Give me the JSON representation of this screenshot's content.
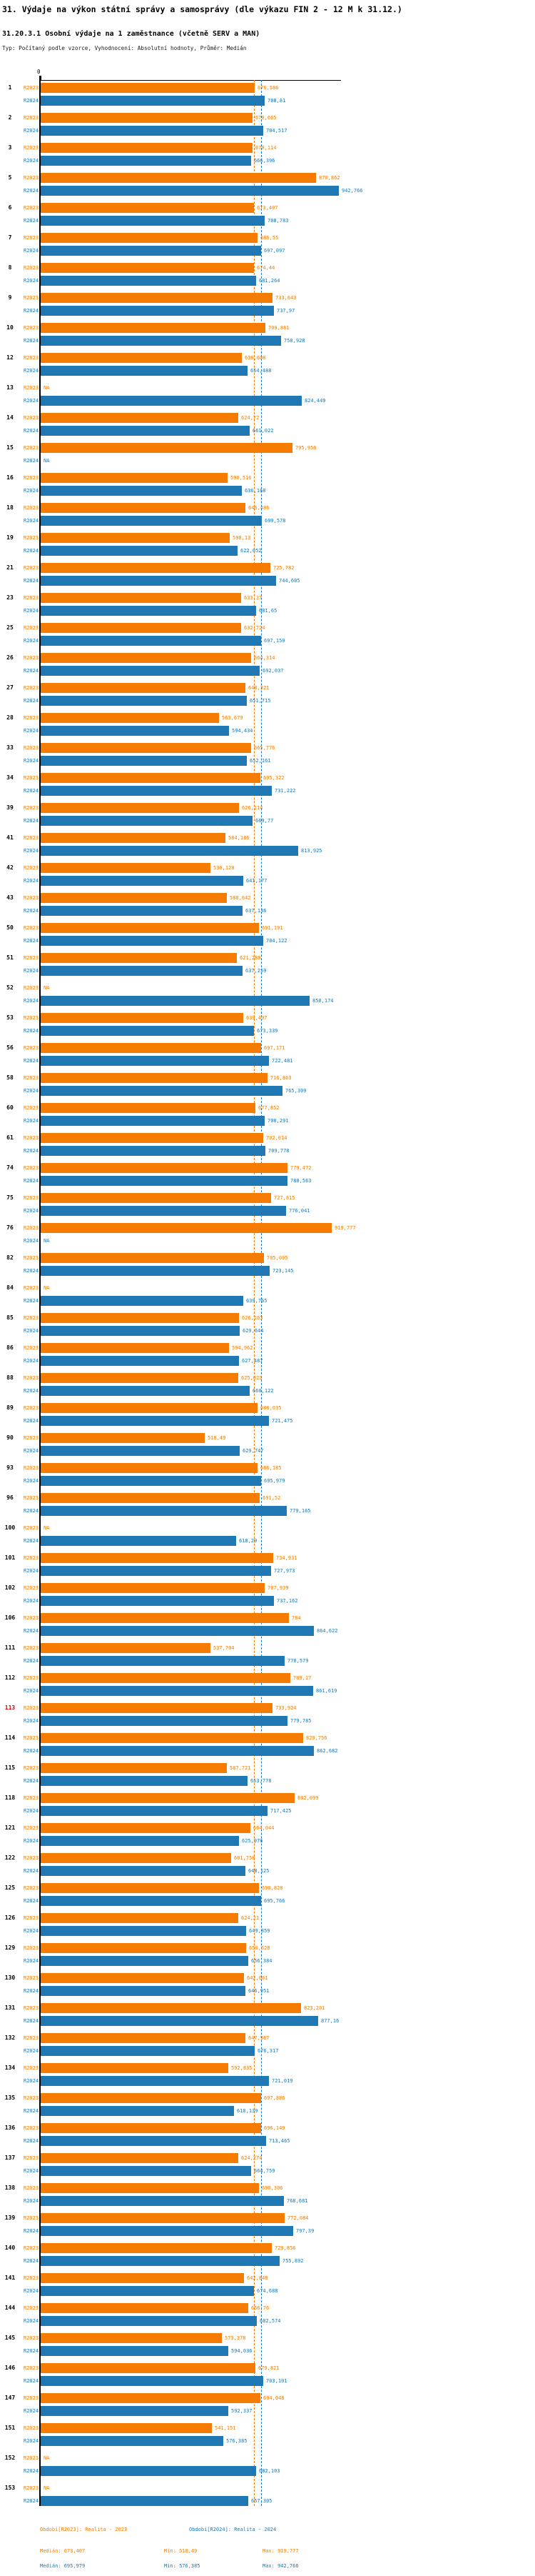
{
  "title": "31. Výdaje na výkon státní správy a samosprávy (dle výkazu FIN 2 - 12 M k 31.12.)",
  "subtitle": "31.20.3.1 Osobní výdaje na 1 zaměstnance (včetně SERV a MAN)",
  "meta": "Typ: Počítaný podle vzorce, Vyhodnocení: Absolutní hodnoty, Průměr: Medián",
  "colors": {
    "r2023": "#F57C00",
    "r2024": "#1F77B4",
    "highlight": "#D40000"
  },
  "axis": {
    "zero_label": "0"
  },
  "footer": {
    "period_2023": "Období[R2023]: Realita - 2023",
    "period_2024": "Období[R2024]: Realita - 2024",
    "stats_2023": {
      "median": "Medián: 673,407",
      "min": "Min: 518,49",
      "max": "Max: 919,777"
    },
    "stats_2024": {
      "median": "Medián: 695,979",
      "min": "Min: 576,385",
      "max": "Max: 942,766"
    }
  },
  "chart_data": {
    "type": "bar",
    "orientation": "horizontal",
    "grid": false,
    "series_labels": {
      "r2023": "R2023",
      "r2024": "R2024"
    },
    "medians": {
      "r2023": "673,407",
      "r2024": "695,979"
    },
    "value_note": "values use Czech decimal comma; NA = no data",
    "rows": [
      {
        "id": "1",
        "r2023": "676,586",
        "r2024": "708,81"
      },
      {
        "id": "2",
        "r2023": "670,665",
        "r2024": "704,517"
      },
      {
        "id": "3",
        "r2023": "670,114",
        "r2024": "666,396"
      },
      {
        "id": "5",
        "r2023": "870,862",
        "r2024": "942,766"
      },
      {
        "id": "6",
        "r2023": "673,407",
        "r2024": "708,783"
      },
      {
        "id": "7",
        "r2023": "686,55",
        "r2024": "697,097"
      },
      {
        "id": "8",
        "r2023": "674,44",
        "r2024": "681,264"
      },
      {
        "id": "9",
        "r2023": "733,643",
        "r2024": "737,97"
      },
      {
        "id": "10",
        "r2023": "709,881",
        "r2024": "758,928"
      },
      {
        "id": "12",
        "r2023": "636,608",
        "r2024": "654,488"
      },
      {
        "id": "13",
        "r2023": "NA",
        "r2024": "824,449"
      },
      {
        "id": "14",
        "r2023": "624,72",
        "r2024": "661,022"
      },
      {
        "id": "15",
        "r2023": "795,956",
        "r2024": "NA"
      },
      {
        "id": "16",
        "r2023": "590,516",
        "r2024": "636,168"
      },
      {
        "id": "18",
        "r2023": "646,486",
        "r2024": "699,578"
      },
      {
        "id": "19",
        "r2023": "598,13",
        "r2024": "622,052"
      },
      {
        "id": "21",
        "r2023": "725,782",
        "r2024": "744,605"
      },
      {
        "id": "23",
        "r2023": "633,37",
        "r2024": "681,65"
      },
      {
        "id": "25",
        "r2023": "632,724",
        "r2024": "697,159"
      },
      {
        "id": "26",
        "r2023": "664,314",
        "r2024": "692,037"
      },
      {
        "id": "27",
        "r2023": "648,321",
        "r2024": "651,715"
      },
      {
        "id": "28",
        "r2023": "563,679",
        "r2024": "594,434"
      },
      {
        "id": "33",
        "r2023": "665,776",
        "r2024": "652,161"
      },
      {
        "id": "34",
        "r2023": "695,322",
        "r2024": "731,222"
      },
      {
        "id": "39",
        "r2023": "626,114",
        "r2024": "669,77"
      },
      {
        "id": "41",
        "r2023": "584,186",
        "r2024": "813,925"
      },
      {
        "id": "42",
        "r2023": "536,128",
        "r2024": "641,177"
      },
      {
        "id": "43",
        "r2023": "588,642",
        "r2024": "637,136"
      },
      {
        "id": "50",
        "r2023": "691,191",
        "r2024": "704,122"
      },
      {
        "id": "51",
        "r2023": "621,288",
        "r2024": "637,259"
      },
      {
        "id": "52",
        "r2023": "NA",
        "r2024": "850,174"
      },
      {
        "id": "53",
        "r2023": "639,497",
        "r2024": "673,339"
      },
      {
        "id": "56",
        "r2023": "697,171",
        "r2024": "722,481"
      },
      {
        "id": "58",
        "r2023": "716,863",
        "r2024": "765,309"
      },
      {
        "id": "60",
        "r2023": "677,852",
        "r2024": "708,291"
      },
      {
        "id": "61",
        "r2023": "702,614",
        "r2024": "709,778"
      },
      {
        "id": "74",
        "r2023": "779,472",
        "r2024": "780,563"
      },
      {
        "id": "75",
        "r2023": "727,815",
        "r2024": "776,041"
      },
      {
        "id": "76",
        "r2023": "919,777",
        "r2024": "NA"
      },
      {
        "id": "82",
        "r2023": "705,095",
        "r2024": "723,145"
      },
      {
        "id": "84",
        "r2023": "NA",
        "r2024": "639,765"
      },
      {
        "id": "85",
        "r2023": "626,163",
        "r2024": "629,644"
      },
      {
        "id": "86",
        "r2023": "594,962",
        "r2024": "627,487"
      },
      {
        "id": "88",
        "r2023": "625,023",
        "r2024": "660,122"
      },
      {
        "id": "89",
        "r2023": "686,035",
        "r2024": "721,475"
      },
      {
        "id": "90",
        "r2023": "518,49",
        "r2024": "629,747"
      },
      {
        "id": "93",
        "r2023": "686,185",
        "r2024": "695,979"
      },
      {
        "id": "96",
        "r2023": "691,52",
        "r2024": "779,165"
      },
      {
        "id": "100",
        "r2023": "NA",
        "r2024": "618,29"
      },
      {
        "id": "101",
        "r2023": "734,931",
        "r2024": "727,973"
      },
      {
        "id": "102",
        "r2023": "707,939",
        "r2024": "737,162"
      },
      {
        "id": "106",
        "r2023": "784",
        "r2024": "864,622"
      },
      {
        "id": "111",
        "r2023": "537,704",
        "r2024": "770,579"
      },
      {
        "id": "112",
        "r2023": "789,17",
        "r2024": "861,619"
      },
      {
        "id": "113",
        "r2023": "733,924",
        "r2024": "779,785",
        "highlight": true
      },
      {
        "id": "114",
        "r2023": "829,756",
        "r2024": "862,682"
      },
      {
        "id": "115",
        "r2023": "587,721",
        "r2024": "653,778"
      },
      {
        "id": "118",
        "r2023": "802,099",
        "r2024": "717,425"
      },
      {
        "id": "121",
        "r2023": "664,044",
        "r2024": "625,976"
      },
      {
        "id": "122",
        "r2023": "601,758",
        "r2024": "648,125"
      },
      {
        "id": "125",
        "r2023": "690,828",
        "r2024": "695,766"
      },
      {
        "id": "126",
        "r2023": "624,21",
        "r2024": "649,859"
      },
      {
        "id": "129",
        "r2023": "650,628",
        "r2024": "656,384"
      },
      {
        "id": "130",
        "r2023": "642,661",
        "r2024": "646,951"
      },
      {
        "id": "131",
        "r2023": "823,201",
        "r2024": "877,16"
      },
      {
        "id": "132",
        "r2023": "647,987",
        "r2024": "676,317"
      },
      {
        "id": "134",
        "r2023": "592,835",
        "r2024": "721,019"
      },
      {
        "id": "135",
        "r2023": "697,886",
        "r2024": "610,139"
      },
      {
        "id": "136",
        "r2023": "696,149",
        "r2024": "713,465"
      },
      {
        "id": "137",
        "r2023": "624,274",
        "r2024": "664,759"
      },
      {
        "id": "138",
        "r2023": "690,306",
        "r2024": "768,681"
      },
      {
        "id": "139",
        "r2023": "772,084",
        "r2024": "797,39"
      },
      {
        "id": "140",
        "r2023": "729,856",
        "r2024": "755,892"
      },
      {
        "id": "141",
        "r2023": "642,848",
        "r2024": "674,688"
      },
      {
        "id": "144",
        "r2023": "656,76",
        "r2024": "682,574"
      },
      {
        "id": "145",
        "r2023": "573,378",
        "r2024": "594,036"
      },
      {
        "id": "146",
        "r2023": "679,821",
        "r2024": "703,101"
      },
      {
        "id": "147",
        "r2023": "694,048",
        "r2024": "592,337"
      },
      {
        "id": "151",
        "r2023": "541,151",
        "r2024": "576,385"
      },
      {
        "id": "152",
        "r2023": "NA",
        "r2024": "682,103"
      },
      {
        "id": "153",
        "r2023": "NA",
        "r2024": "657,305"
      }
    ]
  }
}
